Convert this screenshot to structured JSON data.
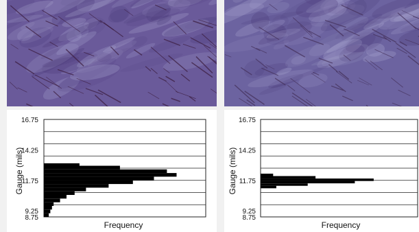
{
  "photos": [
    {
      "name": "left-micrograph",
      "base_color": "#6a5a9a",
      "streak_color": "#3b1c3e"
    },
    {
      "name": "right-micrograph",
      "base_color": "#6c63a0",
      "streak_color": "#44305a"
    }
  ],
  "chart_data": [
    {
      "type": "bar",
      "orientation": "horizontal",
      "xlabel": "Frequency",
      "ylabel": "Gauge (mils)",
      "yticks": [
        "16.75",
        "14.25",
        "11.75",
        "9.25",
        "8.75"
      ],
      "ylim": [
        8.75,
        16.75
      ],
      "xlim": [
        0,
        100
      ],
      "bar_color": "#000000",
      "y": [
        8.9,
        9.2,
        9.5,
        9.8,
        10.1,
        10.4,
        10.7,
        11.0,
        11.3,
        11.6,
        11.9,
        12.2,
        12.5,
        12.8,
        13.0
      ],
      "values": [
        3,
        4,
        5,
        6,
        10,
        14,
        19,
        26,
        40,
        55,
        68,
        82,
        76,
        47,
        22
      ]
    },
    {
      "type": "bar",
      "orientation": "horizontal",
      "xlabel": "Frequency",
      "ylabel": "Gauge (mils)",
      "yticks": [
        "16.75",
        "14.25",
        "11.75",
        "9.25",
        "8.75"
      ],
      "ylim": [
        8.75,
        16.75
      ],
      "xlim": [
        0,
        100
      ],
      "bar_color": "#000000",
      "y": [
        11.2,
        11.4,
        11.6,
        11.8,
        12.0,
        12.2
      ],
      "values": [
        10,
        30,
        60,
        72,
        35,
        8
      ]
    }
  ]
}
